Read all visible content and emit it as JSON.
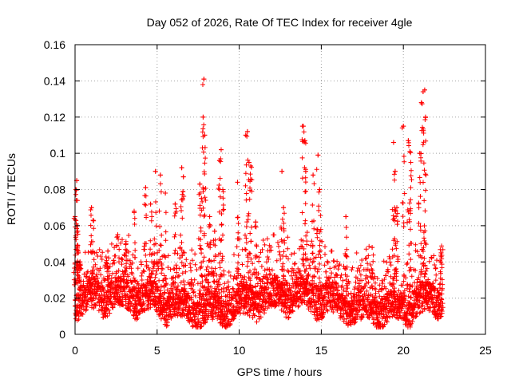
{
  "chart_data": {
    "type": "scatter",
    "title": "Day 052 of 2026, Rate Of TEC Index for receiver 4gle",
    "xlabel": "GPS time / hours",
    "ylabel": "ROTI / TECUs",
    "xlim": [
      0,
      25
    ],
    "ylim": [
      0,
      0.16
    ],
    "x_ticks": [
      0,
      5,
      10,
      15,
      20,
      25
    ],
    "x_tick_labels": [
      "0",
      "5",
      "10",
      "15",
      "20",
      "25"
    ],
    "y_ticks": [
      0,
      0.02,
      0.04,
      0.06,
      0.08,
      0.1,
      0.12,
      0.14,
      0.16
    ],
    "y_tick_labels": [
      "0",
      "0.02",
      "0.04",
      "0.06",
      "0.08",
      "0.1",
      "0.12",
      "0.14",
      "0.16"
    ],
    "grid": true,
    "marker": "+",
    "series_color": "#ff0000",
    "data_range_x": [
      0,
      22.4
    ],
    "series": [
      {
        "name": "ROTI",
        "x": [
          0.0,
          0.05,
          0.1,
          0.15,
          0.2,
          0.3,
          1.0,
          1.1,
          2.0,
          2.6,
          3.1,
          3.6,
          4.3,
          4.6,
          4.9,
          5.2,
          5.5,
          6.1,
          6.5,
          6.6,
          7.6,
          7.7,
          7.8,
          7.85,
          7.9,
          8.2,
          8.5,
          8.8,
          8.9,
          9.0,
          9.9,
          10.4,
          10.5,
          10.6,
          10.7,
          11.0,
          12.6,
          12.7,
          13.9,
          14.0,
          14.05,
          14.5,
          14.8,
          14.9,
          16.5,
          18.1,
          19.4,
          19.5,
          19.6,
          20.0,
          20.3,
          20.4,
          20.45,
          21.0,
          21.1,
          21.2,
          21.3,
          21.35,
          22.3
        ],
        "y": [
          0.065,
          0.08,
          0.085,
          0.06,
          0.045,
          0.04,
          0.07,
          0.063,
          0.046,
          0.055,
          0.05,
          0.068,
          0.081,
          0.072,
          0.09,
          0.088,
          0.078,
          0.072,
          0.092,
          0.087,
          0.083,
          0.075,
          0.12,
          0.141,
          0.11,
          0.065,
          0.057,
          0.096,
          0.102,
          0.08,
          0.084,
          0.11,
          0.112,
          0.095,
          0.093,
          0.062,
          0.09,
          0.07,
          0.115,
          0.107,
          0.09,
          0.088,
          0.099,
          0.08,
          0.065,
          0.048,
          0.106,
          0.09,
          0.07,
          0.115,
          0.107,
          0.101,
          0.095,
          0.1,
          0.128,
          0.134,
          0.135,
          0.12,
          0.045
        ]
      }
    ]
  }
}
